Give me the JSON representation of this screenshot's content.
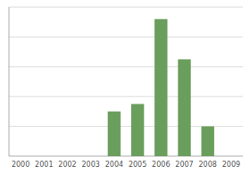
{
  "chart_data": {
    "type": "bar",
    "categories": [
      "2000",
      "2001",
      "2002",
      "2003",
      "2004",
      "2005",
      "2006",
      "2007",
      "2008",
      "2009"
    ],
    "values": [
      0,
      0,
      0,
      0,
      3,
      3.5,
      9.2,
      6.5,
      2,
      0
    ],
    "color": "#6a9e5c",
    "ylim": [
      0,
      10
    ],
    "yticks": [
      2,
      4,
      6,
      8,
      10
    ],
    "grid": true,
    "tick_labels": "x"
  }
}
